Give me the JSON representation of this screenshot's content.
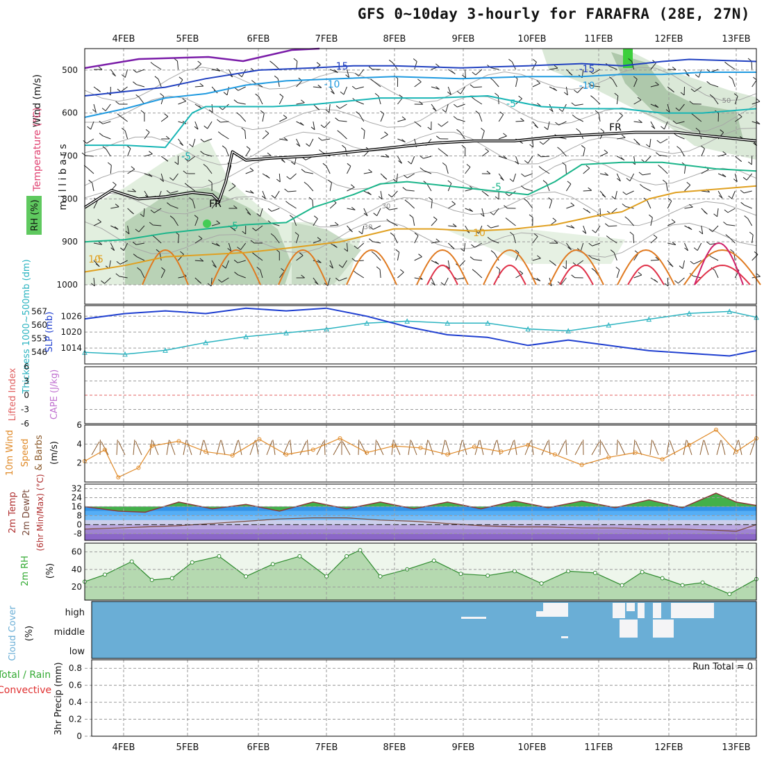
{
  "title": "GFS 0~10day 3-hourly for FARAFRA (28E, 27N)",
  "run_total_label": "Run Total = 0",
  "colors": {
    "frame": "#000000",
    "grid": "#9a9a9a",
    "wind_line": "#e08a28",
    "slp": "#1f3fd0",
    "thick": "#2ab3c0",
    "rh": "#33aa33",
    "cloud_bg": "#6aaed6",
    "cloud_white": "#f4f4f6",
    "lifted": "#e06060"
  },
  "chart_data": [
    {
      "type": "heatmap",
      "name": "upper-air",
      "dates": [
        "4FEB",
        "5FEB",
        "6FEB",
        "7FEB",
        "8FEB",
        "9FEB",
        "10FEB",
        "11FEB",
        "12FEB",
        "13FEB"
      ],
      "ylabel": "m i l l i b a r s",
      "side_labels": [
        "Wind (m/s)",
        "Temperature (°C)",
        "RH (%)"
      ],
      "yticks": [
        500,
        600,
        700,
        800,
        900,
        1000
      ],
      "ylim": [
        450,
        1000
      ],
      "contour_labels": [
        "-15",
        "-15",
        "-10",
        "-10",
        "-5",
        "-5",
        "-5",
        "-5",
        "-5",
        "FR",
        "FR",
        "10",
        "10",
        "30",
        "30",
        "50"
      ],
      "temperature_lines": [
        {
          "label": "-15",
          "color": "#2040c0",
          "x": [
            0,
            12,
            18,
            26,
            34,
            40,
            46,
            56,
            66,
            74,
            80,
            86,
            90,
            100
          ],
          "p": [
            560,
            540,
            520,
            500,
            495,
            490,
            490,
            495,
            490,
            485,
            490,
            480,
            475,
            480
          ]
        },
        {
          "label": "-10",
          "color": "#1f9ae0",
          "x": [
            0,
            6,
            12,
            18,
            24,
            30,
            38,
            46,
            56,
            66,
            74,
            80,
            86,
            92,
            100
          ],
          "p": [
            610,
            590,
            565,
            555,
            535,
            525,
            520,
            515,
            520,
            515,
            515,
            510,
            510,
            505,
            505
          ]
        },
        {
          "label": "-5",
          "color": "#17b5b5",
          "x": [
            0,
            6,
            12,
            16,
            18,
            22,
            28,
            34,
            44,
            52,
            60,
            68,
            74,
            80,
            86,
            92,
            100
          ],
          "p": [
            675,
            675,
            680,
            600,
            585,
            585,
            585,
            580,
            565,
            565,
            560,
            585,
            590,
            590,
            600,
            600,
            590
          ]
        },
        {
          "label": "-5",
          "color": "#1ab58a",
          "x": [
            0,
            6,
            12,
            18,
            24,
            30,
            34,
            40,
            44,
            48,
            54,
            60,
            66,
            70,
            74,
            80,
            86,
            94,
            100
          ],
          "p": [
            900,
            895,
            880,
            870,
            860,
            855,
            820,
            790,
            765,
            760,
            770,
            780,
            790,
            760,
            720,
            715,
            715,
            730,
            735
          ]
        },
        {
          "label": "10",
          "color": "#e0a020",
          "x": [
            0,
            6,
            12,
            18,
            24,
            30,
            38,
            42,
            46,
            52,
            58,
            64,
            70,
            76,
            80,
            84,
            88,
            92,
            96,
            100
          ],
          "p": [
            970,
            955,
            935,
            930,
            925,
            915,
            900,
            885,
            870,
            870,
            875,
            870,
            860,
            840,
            830,
            800,
            785,
            780,
            775,
            770
          ]
        },
        {
          "label": "FR",
          "color": "#000000",
          "x": [
            0,
            4,
            8,
            12,
            16,
            19,
            20,
            21,
            22,
            24,
            28,
            34,
            40,
            46,
            52,
            58,
            64,
            70,
            76,
            82,
            88,
            94,
            100
          ],
          "p": [
            820,
            780,
            800,
            795,
            785,
            790,
            805,
            760,
            690,
            710,
            705,
            700,
            690,
            680,
            670,
            665,
            665,
            655,
            650,
            645,
            645,
            655,
            665
          ]
        }
      ]
    },
    {
      "type": "line",
      "name": "slp-thickness",
      "side_labels": [
        "SLP (mb)",
        "Thickness 1000~500mb (dm)"
      ],
      "slp_ticks": [
        "1014",
        "1020",
        "1026"
      ],
      "thick_ticks": [
        "546",
        "553",
        "560",
        "567"
      ],
      "x": [
        0,
        6,
        12,
        18,
        24,
        30,
        36,
        42,
        48,
        54,
        60,
        66,
        72,
        78,
        84,
        90,
        96,
        100
      ],
      "series": [
        {
          "name": "SLP",
          "units": "mb",
          "values": [
            1025,
            1027,
            1028,
            1027,
            1029,
            1028,
            1029,
            1026,
            1022,
            1019,
            1018,
            1015,
            1017,
            1015,
            1013,
            1012,
            1011,
            1013
          ]
        },
        {
          "name": "Thickness",
          "units": "dm",
          "values": [
            546,
            545,
            547,
            551,
            554,
            556,
            558,
            561,
            562,
            561,
            561,
            558,
            557,
            560,
            563,
            566,
            567,
            564
          ]
        }
      ]
    },
    {
      "type": "line",
      "name": "cape-li",
      "side_labels": [
        "Lifted Index",
        "CAPE (J/kg)"
      ],
      "yticks": [
        "6",
        "3",
        "0",
        "-3",
        "-6"
      ],
      "series": [
        {
          "name": "Lifted Index",
          "values": [
            0,
            0
          ]
        }
      ]
    },
    {
      "type": "line",
      "name": "wind10m",
      "side_labels": [
        "10m Wind",
        "Speed",
        "& Barbs",
        "(m/s)"
      ],
      "yticks": [
        "2",
        "4",
        "6"
      ],
      "x": [
        0,
        3,
        5,
        8,
        10,
        14,
        18,
        22,
        26,
        30,
        34,
        38,
        42,
        46,
        50,
        54,
        58,
        62,
        66,
        70,
        74,
        78,
        82,
        86,
        90,
        94,
        97,
        100
      ],
      "values": [
        2.2,
        3.4,
        0.5,
        1.5,
        3.8,
        4.3,
        3.2,
        2.8,
        4.5,
        2.9,
        3.4,
        4.6,
        3.1,
        3.8,
        3.6,
        2.9,
        3.7,
        3.2,
        3.9,
        2.9,
        1.8,
        2.6,
        3.1,
        2.4,
        3.9,
        5.5,
        3.2,
        4.6
      ]
    },
    {
      "type": "area",
      "name": "temp2m",
      "side_labels": [
        "2m Temp",
        "2m DewPt",
        "(6hr Min/Max) (°C)"
      ],
      "yticks": [
        "-8",
        "0",
        "8",
        "16",
        "24",
        "32"
      ],
      "x": [
        0,
        5,
        9,
        14,
        19,
        24,
        29,
        34,
        39,
        44,
        49,
        54,
        59,
        64,
        69,
        74,
        79,
        84,
        89,
        94,
        97,
        100
      ],
      "temp": [
        16,
        12,
        11,
        20,
        14,
        18,
        12,
        20,
        14,
        20,
        14,
        20,
        14,
        21,
        15,
        21,
        15,
        22,
        15,
        28,
        20,
        17
      ],
      "dewpt": [
        -4,
        -3,
        -2,
        -1,
        1,
        3,
        5,
        6,
        6,
        4,
        3,
        1,
        -1,
        -2,
        -2,
        -3,
        -3,
        -4,
        -4,
        -5,
        -6,
        0
      ]
    },
    {
      "type": "area",
      "name": "rh2m",
      "side_labels": [
        "2m RH",
        "(%)"
      ],
      "yticks": [
        "20",
        "40",
        "60"
      ],
      "x": [
        0,
        3,
        7,
        10,
        13,
        16,
        20,
        24,
        28,
        32,
        36,
        39,
        41,
        44,
        48,
        52,
        56,
        60,
        64,
        68,
        72,
        76,
        80,
        83,
        86,
        89,
        92,
        96,
        100
      ],
      "values": [
        26,
        34,
        49,
        28,
        30,
        48,
        55,
        32,
        46,
        55,
        32,
        55,
        62,
        32,
        40,
        50,
        35,
        33,
        38,
        24,
        38,
        36,
        22,
        37,
        30,
        22,
        25,
        12,
        29
      ]
    },
    {
      "type": "heatmap",
      "name": "cloud-cover",
      "side_labels": [
        "Cloud Cover",
        "(%)"
      ],
      "levels": [
        "high",
        "middle",
        "low"
      ]
    },
    {
      "type": "bar",
      "name": "precip",
      "side_labels": [
        "Total / Rain",
        "Convective",
        "3hr Precip (mm)"
      ],
      "yticks": [
        "0",
        "0.2",
        "0.4",
        "0.6",
        "0.8"
      ],
      "values": []
    }
  ]
}
